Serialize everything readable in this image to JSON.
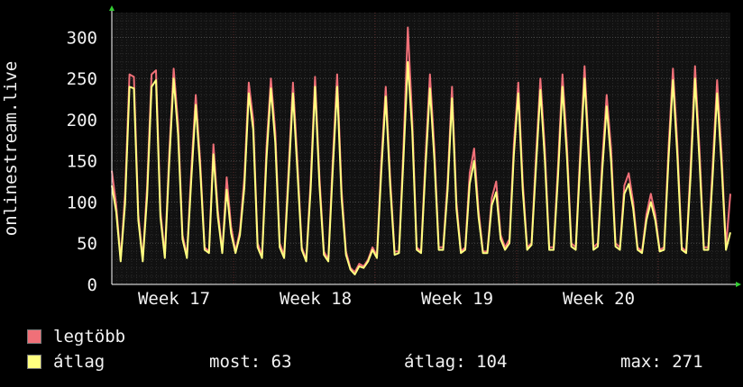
{
  "chart_data": {
    "type": "line",
    "ylabel": "onlinestream.live",
    "ylim": [
      0,
      330
    ],
    "yticks": [
      0,
      50,
      100,
      150,
      200,
      250,
      300
    ],
    "xticks": [
      "Week 17",
      "Week 18",
      "Week 19",
      "Week 20"
    ],
    "grid": true,
    "legend_position": "bottom",
    "series": [
      {
        "name": "legtöbb",
        "color": "#f07078",
        "values": [
          138,
          96,
          30,
          110,
          255,
          252,
          85,
          30,
          120,
          255,
          260,
          90,
          35,
          160,
          262,
          195,
          60,
          35,
          140,
          230,
          150,
          45,
          40,
          170,
          90,
          40,
          130,
          70,
          40,
          65,
          130,
          245,
          200,
          50,
          35,
          165,
          250,
          185,
          50,
          35,
          140,
          245,
          150,
          45,
          30,
          125,
          252,
          130,
          40,
          30,
          150,
          255,
          115,
          40,
          20,
          15,
          25,
          22,
          30,
          45,
          35,
          150,
          240,
          130,
          40,
          40,
          165,
          312,
          200,
          45,
          40,
          155,
          255,
          165,
          45,
          45,
          125,
          240,
          100,
          40,
          45,
          135,
          165,
          90,
          40,
          40,
          105,
          125,
          60,
          45,
          55,
          170,
          245,
          125,
          45,
          50,
          155,
          250,
          165,
          45,
          45,
          145,
          255,
          170,
          50,
          45,
          160,
          265,
          160,
          45,
          50,
          150,
          230,
          165,
          50,
          45,
          120,
          135,
          100,
          45,
          40,
          85,
          110,
          85,
          42,
          45,
          165,
          262,
          170,
          45,
          40,
          145,
          265,
          165,
          45,
          45,
          145,
          248,
          160,
          45,
          110
        ]
      },
      {
        "name": "átlag",
        "color": "#ffff80",
        "values": [
          120,
          88,
          28,
          98,
          240,
          238,
          78,
          28,
          108,
          240,
          248,
          82,
          32,
          148,
          250,
          182,
          55,
          32,
          128,
          218,
          140,
          42,
          38,
          158,
          82,
          38,
          115,
          62,
          38,
          60,
          118,
          232,
          188,
          45,
          32,
          152,
          238,
          172,
          45,
          32,
          128,
          232,
          138,
          42,
          28,
          115,
          240,
          120,
          36,
          28,
          138,
          240,
          105,
          36,
          18,
          12,
          22,
          20,
          28,
          42,
          32,
          138,
          228,
          120,
          36,
          38,
          152,
          270,
          186,
          42,
          38,
          142,
          238,
          152,
          42,
          42,
          115,
          226,
          92,
          38,
          42,
          122,
          150,
          82,
          38,
          38,
          96,
          112,
          55,
          42,
          50,
          158,
          232,
          115,
          42,
          48,
          142,
          236,
          152,
          42,
          42,
          132,
          240,
          156,
          46,
          42,
          148,
          250,
          148,
          42,
          46,
          138,
          216,
          150,
          46,
          42,
          110,
          122,
          92,
          42,
          38,
          78,
          100,
          78,
          40,
          42,
          152,
          248,
          156,
          42,
          38,
          132,
          250,
          150,
          42,
          42,
          132,
          232,
          146,
          42,
          63
        ]
      }
    ]
  },
  "legend": [
    {
      "label": "legtöbb",
      "color": "#f07078"
    },
    {
      "label": "átlag",
      "color": "#ffff80"
    }
  ],
  "stats": {
    "most": "most: 63",
    "atlag": "átlag: 104",
    "max": "max: 271"
  }
}
